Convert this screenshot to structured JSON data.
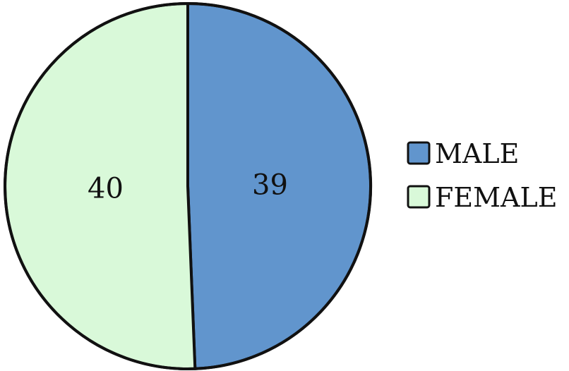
{
  "chart_data": {
    "type": "pie",
    "title": "",
    "slices": [
      {
        "label": "MALE",
        "value": 39,
        "color": "#6195cd"
      },
      {
        "label": "FEMALE",
        "value": 40,
        "color": "#d9f9d9"
      }
    ],
    "start_angle_deg": 0,
    "direction": "clockwise",
    "data_labels": "value",
    "legend": {
      "position": "right"
    },
    "outline_color": "#111111"
  }
}
